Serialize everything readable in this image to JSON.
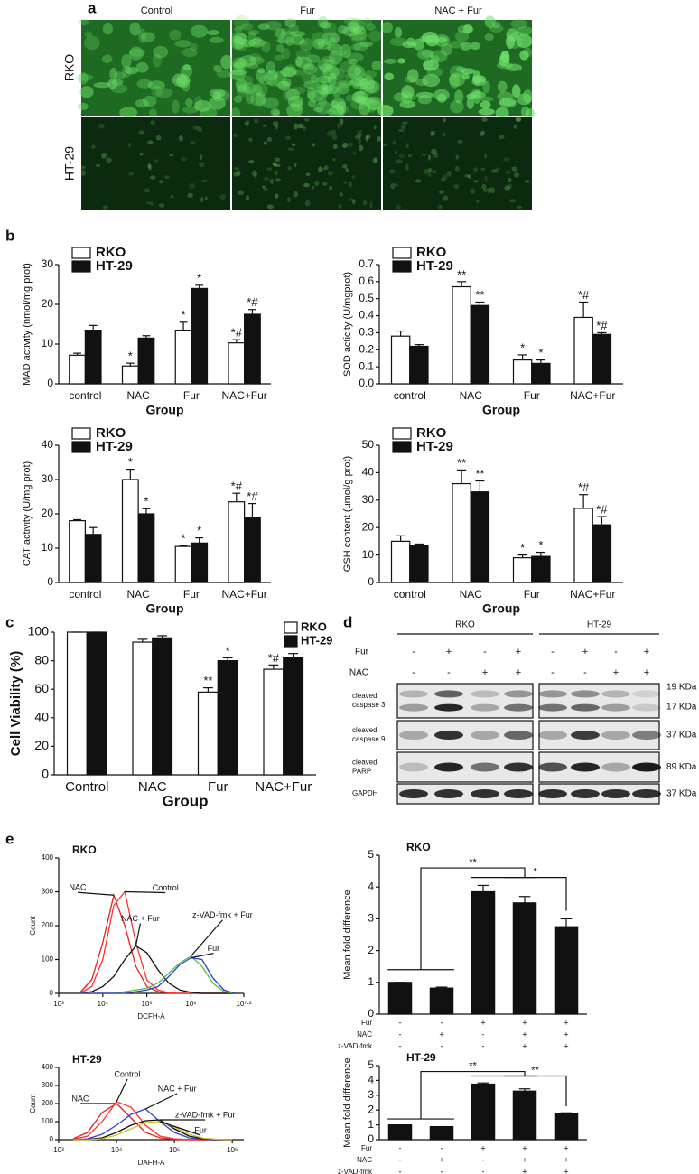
{
  "panel_labels": [
    "a",
    "b",
    "c",
    "d",
    "e"
  ],
  "micrographs": {
    "columns": [
      "Control",
      "Fur",
      "NAC + Fur"
    ],
    "rows": [
      "RKO",
      "HT-29"
    ]
  },
  "blot": {
    "groups": [
      "RKO",
      "HT-29"
    ],
    "treatments": [
      {
        "name": "Fur",
        "signs": [
          "-",
          "+",
          "-",
          "+",
          "-",
          "+",
          "-",
          "+"
        ]
      },
      {
        "name": "NAC",
        "signs": [
          "-",
          "-",
          "+",
          "+",
          "-",
          "-",
          "+",
          "+"
        ]
      }
    ],
    "bands": [
      {
        "label": [
          "cleaved",
          "caspase 3"
        ],
        "sizes": [
          "19 KDa",
          "17 KDa"
        ]
      },
      {
        "label": [
          "cleaved",
          "caspase 9"
        ],
        "sizes": [
          "37 KDa"
        ]
      },
      {
        "label": [
          "cleaved",
          "PARP"
        ],
        "sizes": [
          "89 KDa"
        ]
      },
      {
        "label": [
          "GAPDH"
        ],
        "sizes": [
          "37 KDa"
        ]
      }
    ]
  },
  "chart_data": [
    {
      "type": "bar",
      "ylabel": "MAD activity (nmol/mg prot)",
      "xlabel": "Group",
      "categories": [
        "control",
        "NAC",
        "Fur",
        "NAC+Fur"
      ],
      "ylim": [
        0,
        30
      ],
      "yticks": [
        0,
        10,
        20,
        30
      ],
      "legend": "top-left",
      "series": [
        {
          "name": "RKO",
          "color": "#ffffff",
          "values": [
            7.2,
            4.5,
            13.5,
            10.3
          ],
          "errors": [
            0.5,
            0.7,
            2,
            0.8
          ],
          "marks": [
            null,
            "*",
            "*",
            "*#"
          ]
        },
        {
          "name": "HT-29",
          "color": "#111111",
          "values": [
            13.5,
            11.5,
            24,
            17.5
          ],
          "errors": [
            1.2,
            0.6,
            0.8,
            1.2
          ],
          "marks": [
            null,
            null,
            "*",
            "*#"
          ]
        }
      ]
    },
    {
      "type": "bar",
      "ylabel": "SOD acticity (U/mgprot)",
      "xlabel": "Group",
      "categories": [
        "control",
        "NAC",
        "Fur",
        "NAC+Fur"
      ],
      "ylim": [
        0,
        0.7
      ],
      "yticks": [
        {
          "value": 0,
          "label": "0.0"
        },
        0.1,
        0.2,
        0.3,
        0.4,
        0.5,
        0.6,
        0.7
      ],
      "legend": "top-left",
      "series": [
        {
          "name": "RKO",
          "color": "#ffffff",
          "values": [
            0.28,
            0.57,
            0.14,
            0.39
          ],
          "errors": [
            0.03,
            0.03,
            0.03,
            0.09
          ],
          "marks": [
            null,
            "**",
            "*",
            "*#"
          ]
        },
        {
          "name": "HT-29",
          "color": "#111111",
          "values": [
            0.22,
            0.46,
            0.12,
            0.29
          ],
          "errors": [
            0.01,
            0.02,
            0.02,
            0.01
          ],
          "marks": [
            null,
            "**",
            "*",
            "*#"
          ]
        }
      ]
    },
    {
      "type": "bar",
      "ylabel": "CAT activity (U/mg prot)",
      "xlabel": "Group",
      "categories": [
        "control",
        "NAC",
        "Fur",
        "NAC+Fur"
      ],
      "ylim": [
        0,
        40
      ],
      "yticks": [
        0,
        10,
        20,
        30,
        40
      ],
      "legend": "top-left",
      "series": [
        {
          "name": "RKO",
          "color": "#ffffff",
          "values": [
            18,
            30,
            10.5,
            23.5
          ],
          "errors": [
            0.3,
            3,
            0.3,
            2.5
          ],
          "marks": [
            null,
            "*",
            "*",
            "*#"
          ]
        },
        {
          "name": "HT-29",
          "color": "#111111",
          "values": [
            14,
            20,
            11.5,
            19
          ],
          "errors": [
            2,
            1.5,
            1.5,
            4
          ],
          "marks": [
            null,
            "*",
            "*",
            "*#"
          ]
        }
      ]
    },
    {
      "type": "bar",
      "ylabel": "GSH content (umol/g prot)",
      "xlabel": "Group",
      "categories": [
        "control",
        "NAC",
        "Fur",
        "NAC+Fur"
      ],
      "ylim": [
        0,
        50
      ],
      "yticks": [
        0,
        10,
        20,
        30,
        40,
        50
      ],
      "legend": "top-left",
      "series": [
        {
          "name": "RKO",
          "color": "#ffffff",
          "values": [
            15,
            36,
            9,
            27
          ],
          "errors": [
            2,
            5,
            1,
            5
          ],
          "marks": [
            null,
            "**",
            "*",
            "*#"
          ]
        },
        {
          "name": "HT-29",
          "color": "#111111",
          "values": [
            13.5,
            33,
            9.5,
            21
          ],
          "errors": [
            0.5,
            4,
            1.5,
            3
          ],
          "marks": [
            null,
            "**",
            "*",
            "*#"
          ]
        }
      ]
    },
    {
      "type": "bar",
      "ylabel": "Cell Viability (%)",
      "xlabel": "Group",
      "categories": [
        "Control",
        "NAC",
        "Fur",
        "NAC+Fur"
      ],
      "ylim": [
        0,
        100
      ],
      "yticks": [
        0,
        20,
        40,
        60,
        80,
        100
      ],
      "legend": "top-right",
      "series": [
        {
          "name": "RKO",
          "color": "#ffffff",
          "values": [
            100,
            93,
            58,
            74
          ],
          "errors": [
            0,
            2,
            3,
            3
          ],
          "marks": [
            null,
            null,
            "**",
            "*#"
          ]
        },
        {
          "name": "HT-29",
          "color": "#111111",
          "values": [
            100,
            96,
            80,
            82
          ],
          "errors": [
            0,
            1.5,
            2,
            3
          ],
          "marks": [
            null,
            null,
            "*",
            "*"
          ]
        }
      ]
    },
    {
      "type": "line",
      "title": "RKO",
      "ylabel": "Count",
      "xlabel": "DCFH-A",
      "x": [
        3.5,
        3.75,
        4,
        4.25,
        4.5,
        4.75,
        5,
        5.25,
        5.5,
        5.75,
        6,
        6.25,
        6.5,
        6.75,
        7
      ],
      "xlim": [
        3,
        7.2
      ],
      "xticks": [
        {
          "value": 3,
          "label": "10³"
        },
        {
          "value": 4,
          "label": "10⁴"
        },
        {
          "value": 5,
          "label": "10⁵"
        },
        {
          "value": 6,
          "label": "10⁶"
        },
        {
          "value": 7.2,
          "label": "10⁷·²"
        }
      ],
      "ylim": [
        0,
        400
      ],
      "yticks": [
        0,
        100,
        200,
        300,
        400
      ],
      "series": [
        {
          "name": "NAC",
          "color": "#e02020",
          "values": [
            5,
            40,
            150,
            290,
            200,
            80,
            20,
            5,
            0,
            0,
            0,
            0,
            0,
            0,
            0
          ]
        },
        {
          "name": "Control",
          "color": "#ff3030",
          "values": [
            2,
            20,
            100,
            260,
            300,
            150,
            40,
            10,
            2,
            0,
            0,
            0,
            0,
            0,
            0
          ]
        },
        {
          "name": "NAC + Fur",
          "color": "#111111",
          "values": [
            0,
            5,
            20,
            50,
            100,
            140,
            120,
            70,
            30,
            10,
            3,
            0,
            0,
            0,
            0
          ]
        },
        {
          "name": "z-VAD-fmk + Fur",
          "color": "#50c040",
          "values": [
            0,
            0,
            0,
            0,
            5,
            10,
            15,
            30,
            60,
            90,
            110,
            80,
            30,
            5,
            0
          ]
        },
        {
          "name": "Fur",
          "color": "#3040d0",
          "values": [
            0,
            0,
            0,
            0,
            0,
            5,
            10,
            20,
            50,
            85,
            105,
            100,
            45,
            10,
            0
          ]
        }
      ]
    },
    {
      "type": "bar",
      "title": "RKO",
      "ylabel": "Mean fold difference",
      "ylim": [
        0,
        5
      ],
      "yticks": [
        0,
        1,
        2,
        3,
        4,
        5
      ],
      "color": "#111111",
      "values": [
        1,
        0.82,
        3.85,
        3.5,
        2.75
      ],
      "errors": [
        0,
        0.03,
        0.2,
        0.2,
        0.25
      ],
      "conditions": [
        {
          "name": "Fur",
          "signs": [
            "-",
            "-",
            "+",
            "+",
            "+"
          ]
        },
        {
          "name": "NAC",
          "signs": [
            "-",
            "+",
            "-",
            "+",
            "+"
          ]
        },
        {
          "name": "z-VAD-fmk",
          "signs": [
            "-",
            "-",
            "-",
            "+",
            "+"
          ]
        }
      ],
      "brackets": [
        "**",
        "*"
      ]
    },
    {
      "type": "line",
      "title": "HT-29",
      "ylabel": "Count",
      "xlabel": "DAFH-A",
      "x": [
        3.25,
        3.5,
        3.75,
        4,
        4.25,
        4.5,
        4.75,
        5,
        5.25,
        5.5,
        5.75,
        6
      ],
      "xlim": [
        3,
        6.2
      ],
      "xticks": [
        {
          "value": 3,
          "label": "10³"
        },
        {
          "value": 4,
          "label": "10⁴"
        },
        {
          "value": 5,
          "label": "10⁵"
        },
        {
          "value": 6,
          "label": "10⁶"
        }
      ],
      "ylim": [
        0,
        400
      ],
      "yticks": [
        0,
        100,
        200,
        300,
        400
      ],
      "series": [
        {
          "name": "NAC",
          "color": "#e02020",
          "values": [
            5,
            40,
            150,
            200,
            120,
            40,
            10,
            2,
            0,
            0,
            0,
            0
          ]
        },
        {
          "name": "Control",
          "color": "#ff3030",
          "values": [
            2,
            20,
            100,
            210,
            180,
            80,
            20,
            5,
            0,
            0,
            0,
            0
          ]
        },
        {
          "name": "NAC + Fur",
          "color": "#3040d0",
          "values": [
            0,
            5,
            30,
            80,
            140,
            170,
            100,
            40,
            10,
            2,
            0,
            0
          ]
        },
        {
          "name": "z-VAD-fmk + Fur",
          "color": "#111111",
          "values": [
            0,
            2,
            10,
            40,
            80,
            105,
            110,
            60,
            20,
            5,
            0,
            0
          ]
        },
        {
          "name": "Fur",
          "color": "#d0c020",
          "values": [
            0,
            0,
            5,
            25,
            60,
            95,
            100,
            70,
            30,
            8,
            2,
            0
          ]
        }
      ]
    },
    {
      "type": "bar",
      "title": "HT-29",
      "ylabel": "Mean fold difference",
      "ylim": [
        0,
        5
      ],
      "yticks": [
        0,
        1,
        2,
        3,
        4,
        5
      ],
      "color": "#111111",
      "values": [
        1,
        0.88,
        3.75,
        3.28,
        1.75
      ],
      "errors": [
        0,
        0,
        0.08,
        0.15,
        0.06
      ],
      "conditions": [
        {
          "name": "Fur",
          "signs": [
            "-",
            "-",
            "+",
            "+",
            "+"
          ]
        },
        {
          "name": "NAC",
          "signs": [
            "-",
            "+",
            "-",
            "+",
            "+"
          ]
        },
        {
          "name": "z-VAD-fmk",
          "signs": [
            "-",
            "-",
            "-",
            "+",
            "+"
          ]
        }
      ],
      "brackets": [
        "**",
        "**"
      ]
    }
  ]
}
